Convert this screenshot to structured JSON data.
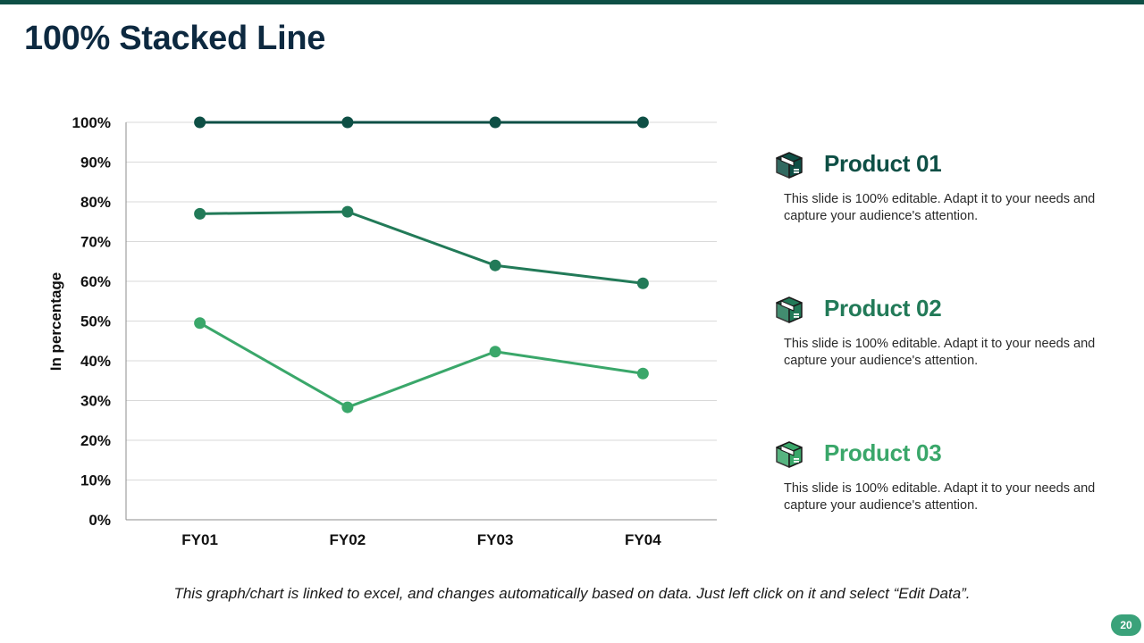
{
  "slide": {
    "title": "100% Stacked Line",
    "footnote": "This graph/chart is linked to excel, and changes automatically based on data. Just left click on it and select “Edit Data”.",
    "page_number": "20"
  },
  "chart_data": {
    "type": "line",
    "subtype": "100% stacked",
    "categories": [
      "FY01",
      "FY02",
      "FY03",
      "FY04"
    ],
    "ylabel": "In percentage",
    "ylim": [
      0,
      100
    ],
    "yticks": [
      "0%",
      "10%",
      "20%",
      "30%",
      "40%",
      "50%",
      "60%",
      "70%",
      "80%",
      "90%",
      "100%"
    ],
    "grid": "horizontal",
    "legend": "none",
    "series": [
      {
        "color": "#0e4f45",
        "values": [
          100,
          100,
          100,
          100
        ]
      },
      {
        "color": "#227a58",
        "values": [
          77,
          77.5,
          64,
          59.5
        ]
      },
      {
        "color": "#3aa76a",
        "values": [
          49.5,
          28.3,
          42.3,
          36.8
        ]
      }
    ]
  },
  "products": [
    {
      "name": "Product 01",
      "color": "#0e4f45",
      "icon": "package-box-icon",
      "description": "This slide is 100% editable. Adapt it to your needs and capture your audience's attention."
    },
    {
      "name": "Product 02",
      "color": "#227a58",
      "icon": "package-box-icon",
      "description": "This slide is 100% editable. Adapt it to your needs and capture your audience's attention."
    },
    {
      "name": "Product 03",
      "color": "#3aa76a",
      "icon": "package-box-icon",
      "description": "This slide is 100% editable. Adapt it to your needs and capture your audience's attention."
    }
  ]
}
